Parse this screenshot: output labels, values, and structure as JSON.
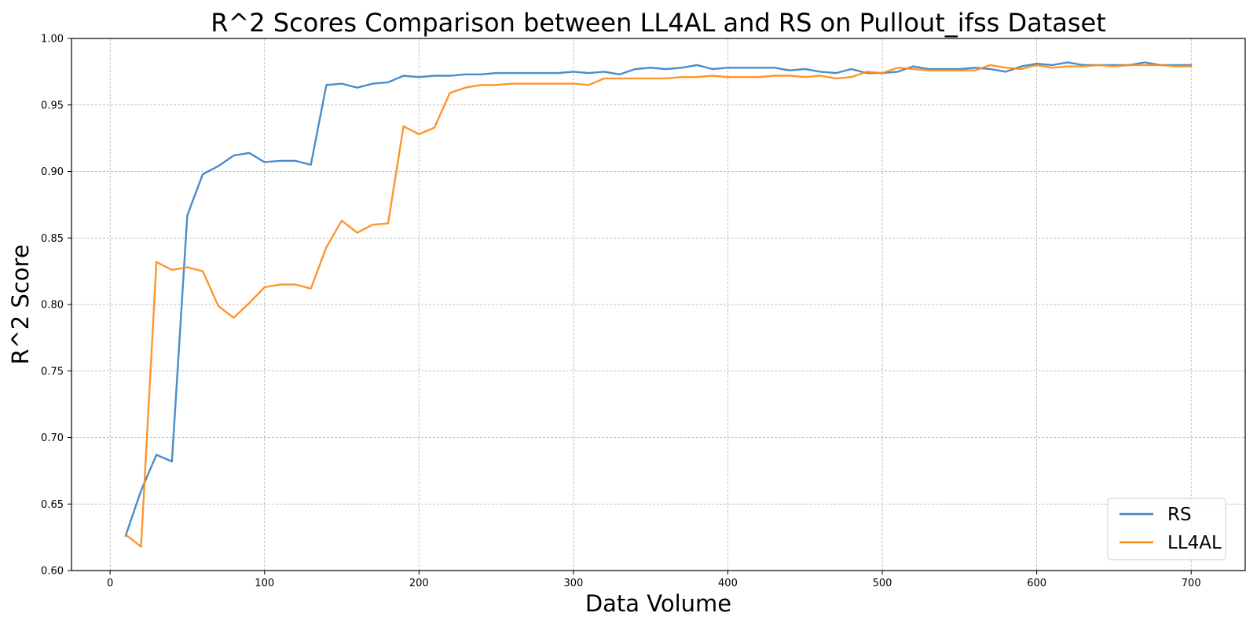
{
  "chart_data": {
    "type": "line",
    "title": "R^2 Scores Comparison between LL4AL and RS on Pullout_ifss Dataset",
    "xlabel": "Data Volume",
    "ylabel": "R^2 Score",
    "xlim": [
      -25,
      735
    ],
    "ylim": [
      0.6,
      1.0
    ],
    "xticks": [
      "0",
      "100",
      "200",
      "300",
      "400",
      "500",
      "600",
      "700"
    ],
    "yticks": [
      "0.60",
      "0.65",
      "0.70",
      "0.75",
      "0.80",
      "0.85",
      "0.90",
      "0.95",
      "1.00"
    ],
    "grid": true,
    "legend_position": "bottom-right",
    "x": [
      10,
      20,
      30,
      40,
      50,
      60,
      70,
      80,
      90,
      100,
      110,
      120,
      130,
      140,
      150,
      160,
      170,
      180,
      190,
      200,
      210,
      220,
      230,
      240,
      250,
      260,
      270,
      280,
      290,
      300,
      310,
      320,
      330,
      340,
      350,
      360,
      370,
      380,
      390,
      400,
      410,
      420,
      430,
      440,
      450,
      460,
      470,
      480,
      490,
      500,
      510,
      520,
      530,
      540,
      550,
      560,
      570,
      580,
      590,
      600,
      610,
      620,
      630,
      640,
      650,
      660,
      670,
      680,
      690,
      700
    ],
    "series": [
      {
        "name": "RS",
        "color": "#3b82c4",
        "values": [
          0.626,
          0.66,
          0.687,
          0.682,
          0.867,
          0.898,
          0.904,
          0.912,
          0.914,
          0.907,
          0.908,
          0.908,
          0.905,
          0.965,
          0.966,
          0.963,
          0.966,
          0.967,
          0.972,
          0.971,
          0.972,
          0.972,
          0.973,
          0.973,
          0.974,
          0.974,
          0.974,
          0.974,
          0.974,
          0.975,
          0.974,
          0.975,
          0.973,
          0.977,
          0.978,
          0.977,
          0.978,
          0.98,
          0.977,
          0.978,
          0.978,
          0.978,
          0.978,
          0.976,
          0.977,
          0.975,
          0.974,
          0.977,
          0.974,
          0.974,
          0.975,
          0.979,
          0.977,
          0.977,
          0.977,
          0.978,
          0.977,
          0.975,
          0.979,
          0.981,
          0.98,
          0.982,
          0.98,
          0.98,
          0.98,
          0.98,
          0.982,
          0.98,
          0.98,
          0.98
        ]
      },
      {
        "name": "LL4AL",
        "color": "#ff8c1a",
        "values": [
          0.627,
          0.618,
          0.832,
          0.826,
          0.828,
          0.825,
          0.799,
          0.79,
          0.801,
          0.813,
          0.815,
          0.815,
          0.812,
          0.843,
          0.863,
          0.854,
          0.86,
          0.861,
          0.934,
          0.928,
          0.933,
          0.959,
          0.963,
          0.965,
          0.965,
          0.966,
          0.966,
          0.966,
          0.966,
          0.966,
          0.965,
          0.97,
          0.97,
          0.97,
          0.97,
          0.97,
          0.971,
          0.971,
          0.972,
          0.971,
          0.971,
          0.971,
          0.972,
          0.972,
          0.971,
          0.972,
          0.97,
          0.971,
          0.975,
          0.974,
          0.978,
          0.977,
          0.976,
          0.976,
          0.976,
          0.976,
          0.98,
          0.978,
          0.977,
          0.98,
          0.978,
          0.979,
          0.979,
          0.98,
          0.979,
          0.98,
          0.98,
          0.98,
          0.979,
          0.979
        ]
      }
    ]
  }
}
